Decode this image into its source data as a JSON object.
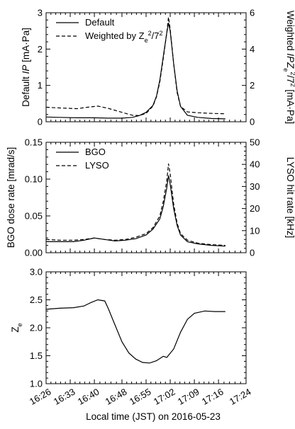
{
  "xlabel": "Local time (JST) on 2016-05-23",
  "chart_data": [
    {
      "type": "line",
      "xlabel": "Local time (JST) on 2016-05-23",
      "ylabel": "Default IP [mA·Pa]",
      "ylabel_parts": [
        "Default ",
        "IP",
        " [mA·Pa]"
      ],
      "y2label": "Weighted IPZ_e^2/7^2 [mA·Pa]",
      "y2label_parts": [
        "Weighted ",
        "IPZ",
        "e",
        "2",
        "/7",
        "2",
        " [mA·Pa]"
      ],
      "xlim": [
        "16:26",
        "17:24"
      ],
      "ylim": [
        0,
        3
      ],
      "y2lim": [
        0,
        6
      ],
      "xticks": [
        "16:26",
        "16:33",
        "16:40",
        "16:48",
        "16:55",
        "17:02",
        "17:09",
        "17:16",
        "17:24"
      ],
      "yticks": [
        "0",
        "1",
        "2",
        "3"
      ],
      "y2ticks": [
        "0",
        "2",
        "4",
        "6"
      ],
      "legend_position": "top-left",
      "legend": [
        "Default",
        "Weighted by Z_e^2/7^2"
      ],
      "legend_parts": [
        [
          "Default"
        ],
        [
          "Weighted by Z",
          "e",
          "2",
          "/7",
          "2"
        ]
      ],
      "series": [
        {
          "name": "Default",
          "axis": "left",
          "style": "solid",
          "x": [
            "16:26",
            "16:30",
            "16:35",
            "16:40",
            "16:44",
            "16:48",
            "16:51",
            "16:53",
            "16:55",
            "16:57",
            "16:58",
            "16:59",
            "17:00",
            "17:01",
            "17:01:30",
            "17:02",
            "17:03",
            "17:04",
            "17:05",
            "17:07",
            "17:10",
            "17:14",
            "17:18"
          ],
          "y": [
            0.13,
            0.12,
            0.11,
            0.11,
            0.1,
            0.1,
            0.12,
            0.17,
            0.26,
            0.45,
            0.7,
            1.15,
            1.8,
            2.45,
            2.72,
            2.5,
            1.6,
            0.85,
            0.42,
            0.18,
            0.12,
            0.09,
            0.08
          ]
        },
        {
          "name": "Weighted by Z_e^2/7^2",
          "axis": "left",
          "style": "dashed",
          "x": [
            "16:26",
            "16:30",
            "16:35",
            "16:38",
            "16:41",
            "16:44",
            "16:48",
            "16:51",
            "16:53",
            "16:55",
            "16:57",
            "16:58",
            "16:59",
            "17:00",
            "17:01",
            "17:01:30",
            "17:02",
            "17:03",
            "17:04",
            "17:05",
            "17:07",
            "17:10",
            "17:14",
            "17:18"
          ],
          "y": [
            0.4,
            0.38,
            0.36,
            0.4,
            0.43,
            0.37,
            0.26,
            0.18,
            0.17,
            0.23,
            0.43,
            0.68,
            1.1,
            1.75,
            2.45,
            2.88,
            2.55,
            1.6,
            0.8,
            0.42,
            0.27,
            0.25,
            0.23,
            0.22
          ]
        }
      ]
    },
    {
      "type": "line",
      "ylabel": "BGO dose rate [mrad/s]",
      "y2label": "LYSO hit rate [kHz]",
      "xlim": [
        "16:26",
        "17:24"
      ],
      "ylim": [
        0,
        0.15
      ],
      "y2lim": [
        0,
        50
      ],
      "xticks": [
        "16:26",
        "16:33",
        "16:40",
        "16:48",
        "16:55",
        "17:02",
        "17:09",
        "17:16",
        "17:24"
      ],
      "yticks": [
        "0.00",
        "0.05",
        "0.10",
        "0.15"
      ],
      "y2ticks": [
        "0",
        "10",
        "20",
        "30",
        "40",
        "50"
      ],
      "legend_position": "top-left",
      "legend": [
        "BGO",
        "LYSO"
      ],
      "series": [
        {
          "name": "BGO",
          "axis": "left",
          "style": "solid",
          "x": [
            "16:26",
            "16:30",
            "16:34",
            "16:37",
            "16:40",
            "16:43",
            "16:46",
            "16:49",
            "16:52",
            "16:55",
            "16:57",
            "16:59",
            "17:00",
            "17:01",
            "17:01:30",
            "17:02",
            "17:03",
            "17:04",
            "17:05",
            "17:07",
            "17:10",
            "17:14",
            "17:18"
          ],
          "y": [
            0.015,
            0.015,
            0.015,
            0.017,
            0.02,
            0.018,
            0.016,
            0.017,
            0.019,
            0.024,
            0.032,
            0.046,
            0.063,
            0.088,
            0.105,
            0.093,
            0.06,
            0.037,
            0.024,
            0.015,
            0.012,
            0.01,
            0.009
          ]
        },
        {
          "name": "LYSO",
          "axis": "left",
          "style": "dashed",
          "x": [
            "16:26",
            "16:30",
            "16:34",
            "16:37",
            "16:40",
            "16:43",
            "16:46",
            "16:49",
            "16:52",
            "16:55",
            "16:57",
            "16:59",
            "17:00",
            "17:01",
            "17:01:30",
            "17:02",
            "17:03",
            "17:04",
            "17:05",
            "17:07",
            "17:10",
            "17:14",
            "17:18"
          ],
          "y": [
            0.018,
            0.017,
            0.017,
            0.018,
            0.02,
            0.018,
            0.017,
            0.018,
            0.021,
            0.026,
            0.034,
            0.05,
            0.07,
            0.098,
            0.121,
            0.107,
            0.066,
            0.04,
            0.026,
            0.017,
            0.013,
            0.011,
            0.01
          ]
        }
      ]
    },
    {
      "type": "line",
      "ylabel": "Z_e",
      "ylabel_parts": [
        "Z",
        "e"
      ],
      "xlim": [
        "16:26",
        "17:24"
      ],
      "ylim": [
        1.0,
        3.0
      ],
      "xticks": [
        "16:26",
        "16:33",
        "16:40",
        "16:48",
        "16:55",
        "17:02",
        "17:09",
        "17:16",
        "17:24"
      ],
      "yticks": [
        "1.0",
        "1.5",
        "2.0",
        "2.5",
        "3.0"
      ],
      "series": [
        {
          "axis": "left",
          "style": "solid",
          "x": [
            "16:26",
            "16:30",
            "16:34",
            "16:37",
            "16:39",
            "16:41",
            "16:43",
            "16:44",
            "16:46",
            "16:48",
            "16:50",
            "16:52",
            "16:54",
            "16:56",
            "16:58",
            "17:00",
            "17:01",
            "17:03",
            "17:05",
            "17:07",
            "17:09",
            "17:12",
            "17:15",
            "17:18"
          ],
          "y": [
            2.33,
            2.35,
            2.36,
            2.39,
            2.45,
            2.5,
            2.48,
            2.35,
            2.05,
            1.75,
            1.55,
            1.44,
            1.38,
            1.37,
            1.41,
            1.49,
            1.47,
            1.62,
            1.92,
            2.15,
            2.26,
            2.3,
            2.29,
            2.29
          ]
        }
      ]
    }
  ]
}
